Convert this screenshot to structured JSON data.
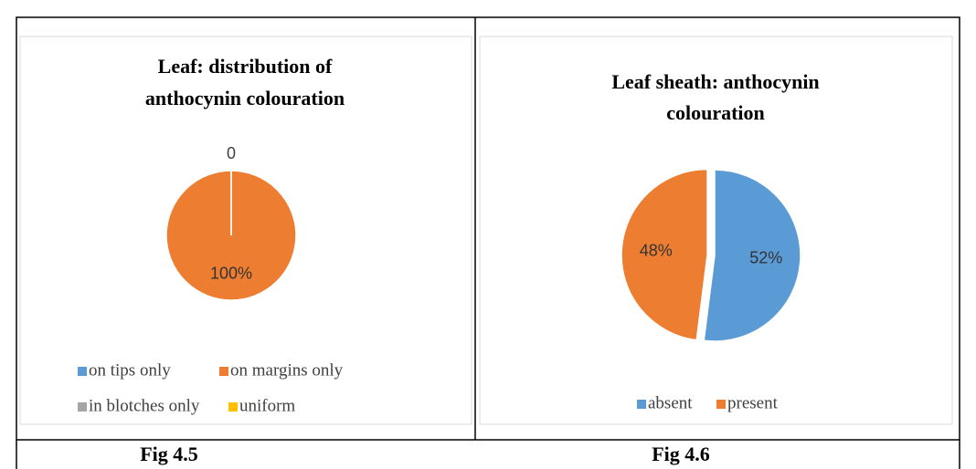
{
  "chart_data": [
    {
      "type": "pie",
      "title": [
        "Leaf: distribution of",
        "anthocynin colouration"
      ],
      "categories": [
        "on tips only",
        "on margins only",
        "in blotches only",
        "uniform"
      ],
      "values": [
        0,
        100,
        0,
        0
      ],
      "value_labels": [
        "0",
        "100%",
        null,
        null
      ],
      "colors": [
        "#5b9bd5",
        "#ed7d31",
        "#a5a5a5",
        "#ffc000"
      ],
      "legend": "bottom"
    },
    {
      "type": "pie",
      "title": [
        "Leaf sheath: anthocynin",
        "colouration"
      ],
      "categories": [
        "absent",
        "present"
      ],
      "values": [
        52,
        48
      ],
      "value_labels": [
        "52%",
        "48%"
      ],
      "colors": [
        "#5b9bd5",
        "#ed7d31"
      ],
      "legend": "bottom"
    }
  ],
  "captions": [
    "Fig 4.5",
    "Fig 4.6"
  ]
}
